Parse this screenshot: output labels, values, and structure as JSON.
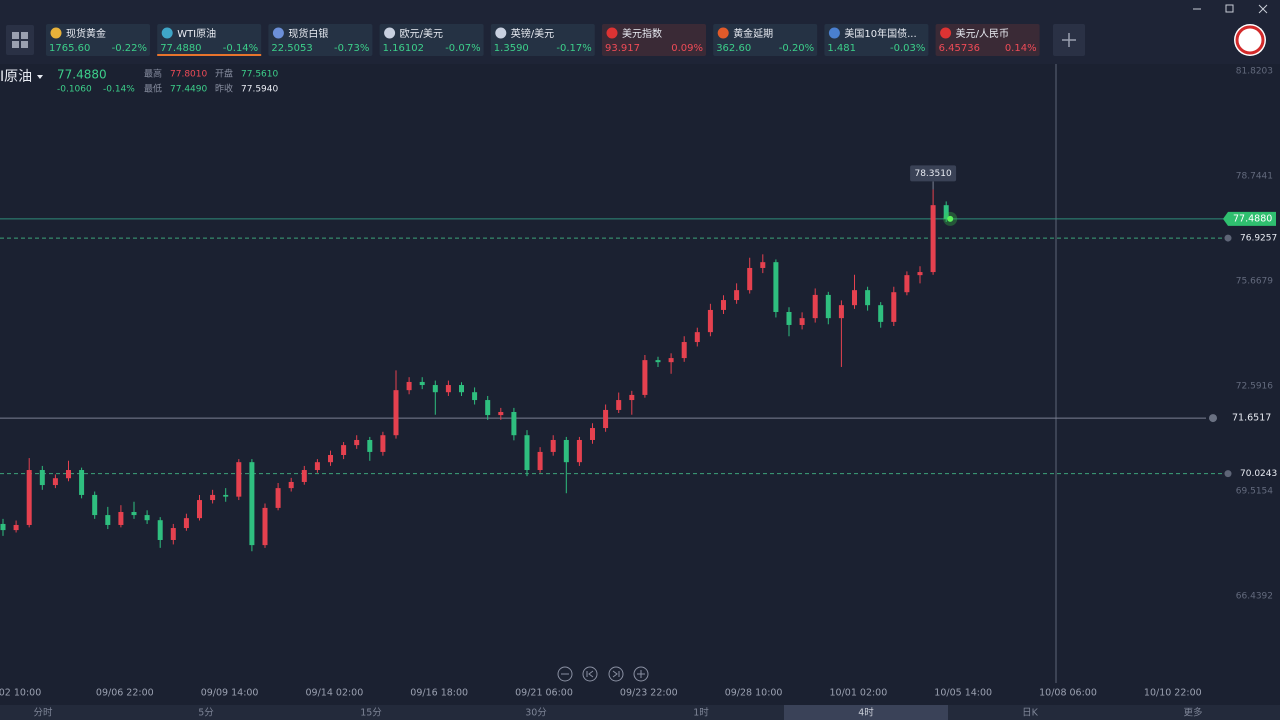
{
  "tickers": [
    {
      "name": "现货黄金",
      "price": "1765.60",
      "change": "-0.22%"
    },
    {
      "name": "WTI原油",
      "price": "77.4880",
      "change": "-0.14%"
    },
    {
      "name": "现货白银",
      "price": "22.5053",
      "change": "-0.73%"
    },
    {
      "name": "欧元/美元",
      "price": "1.16102",
      "change": "-0.07%"
    },
    {
      "name": "英镑/美元",
      "price": "1.3590",
      "change": "-0.17%"
    },
    {
      "name": "美元指数",
      "price": "93.917",
      "change": "0.09%"
    },
    {
      "name": "黄金延期",
      "price": "362.60",
      "change": "-0.20%"
    },
    {
      "name": "美国10年国债...",
      "price": "1.481",
      "change": "-0.03%"
    },
    {
      "name": "美元/人民币",
      "price": "6.45736",
      "change": "0.14%"
    }
  ],
  "quote": {
    "symbol": "I原油",
    "price": "77.4880",
    "change": "-0.1060",
    "change_pct": "-0.14%",
    "fields": [
      {
        "label": "最高",
        "value": "77.8010"
      },
      {
        "label": "开盘",
        "value": "77.5610"
      },
      {
        "label": "最低",
        "value": "77.4490"
      },
      {
        "label": "昨收",
        "value": "77.5940"
      }
    ]
  },
  "chart_data": {
    "type": "candlestick",
    "up_color": "#e5414f",
    "down_color": "#2fbf7f",
    "ylim": [
      63.89,
      82.026
    ],
    "yticks": [
      81.8203,
      78.7441,
      75.6679,
      72.5916,
      69.5154,
      66.4392
    ],
    "x_labels": [
      "02 10:00",
      "09/06 22:00",
      "09/09 14:00",
      "09/14 02:00",
      "09/16 18:00",
      "09/21 06:00",
      "09/23 22:00",
      "09/28 10:00",
      "10/01 02:00",
      "10/05 14:00",
      "10/08 06:00",
      "10/10 22:00"
    ],
    "last_price": {
      "value": 77.488,
      "label": "77.4880"
    },
    "high_label": {
      "value": 78.351,
      "label": "78.3510"
    },
    "alert_lines": [
      76.9257,
      70.0243
    ],
    "crosshair": 71.6517,
    "candles": [
      [
        68.55,
        68.7,
        68.2,
        68.37
      ],
      [
        68.37,
        68.65,
        68.3,
        68.52
      ],
      [
        68.52,
        70.48,
        68.45,
        70.13
      ],
      [
        70.13,
        70.25,
        69.55,
        69.69
      ],
      [
        69.69,
        70.0,
        69.6,
        69.89
      ],
      [
        69.89,
        70.4,
        69.8,
        70.13
      ],
      [
        70.13,
        70.2,
        69.3,
        69.4
      ],
      [
        69.4,
        69.5,
        68.7,
        68.81
      ],
      [
        68.81,
        69.05,
        68.4,
        68.52
      ],
      [
        68.52,
        69.1,
        68.45,
        68.9
      ],
      [
        68.9,
        69.2,
        68.7,
        68.81
      ],
      [
        68.81,
        68.95,
        68.55,
        68.66
      ],
      [
        68.66,
        68.75,
        67.85,
        68.08
      ],
      [
        68.08,
        68.55,
        67.95,
        68.43
      ],
      [
        68.43,
        68.85,
        68.35,
        68.72
      ],
      [
        68.72,
        69.4,
        68.65,
        69.25
      ],
      [
        69.25,
        69.55,
        69.15,
        69.4
      ],
      [
        69.4,
        69.6,
        69.2,
        69.35
      ],
      [
        69.35,
        70.45,
        69.25,
        70.36
      ],
      [
        70.36,
        70.45,
        67.75,
        67.93
      ],
      [
        67.93,
        69.15,
        67.85,
        69.02
      ],
      [
        69.02,
        69.75,
        68.95,
        69.6
      ],
      [
        69.6,
        69.9,
        69.5,
        69.78
      ],
      [
        69.78,
        70.25,
        69.7,
        70.13
      ],
      [
        70.13,
        70.45,
        70.05,
        70.36
      ],
      [
        70.36,
        70.7,
        70.25,
        70.57
      ],
      [
        70.57,
        70.95,
        70.45,
        70.86
      ],
      [
        70.86,
        71.15,
        70.75,
        71.01
      ],
      [
        71.01,
        71.1,
        70.4,
        70.66
      ],
      [
        70.66,
        71.25,
        70.55,
        71.15
      ],
      [
        71.15,
        73.05,
        71.05,
        72.47
      ],
      [
        72.47,
        72.85,
        72.35,
        72.71
      ],
      [
        72.71,
        72.85,
        72.5,
        72.62
      ],
      [
        72.62,
        72.75,
        71.75,
        72.41
      ],
      [
        72.41,
        72.75,
        72.3,
        72.62
      ],
      [
        72.62,
        72.7,
        72.3,
        72.41
      ],
      [
        72.41,
        72.55,
        72.05,
        72.18
      ],
      [
        72.18,
        72.3,
        71.6,
        71.74
      ],
      [
        71.74,
        71.95,
        71.6,
        71.83
      ],
      [
        71.83,
        71.95,
        71.0,
        71.15
      ],
      [
        71.15,
        71.3,
        69.95,
        70.13
      ],
      [
        70.13,
        70.8,
        70.05,
        70.66
      ],
      [
        70.66,
        71.15,
        70.55,
        71.01
      ],
      [
        71.01,
        71.1,
        69.45,
        70.36
      ],
      [
        70.36,
        71.1,
        70.25,
        71.01
      ],
      [
        71.01,
        71.5,
        70.9,
        71.36
      ],
      [
        71.36,
        72.05,
        71.25,
        71.89
      ],
      [
        71.89,
        72.4,
        71.8,
        72.18
      ],
      [
        72.18,
        72.45,
        71.75,
        72.33
      ],
      [
        72.33,
        73.5,
        72.25,
        73.35
      ],
      [
        73.35,
        73.45,
        73.15,
        73.29
      ],
      [
        73.29,
        73.55,
        72.95,
        73.41
      ],
      [
        73.41,
        74.05,
        73.3,
        73.88
      ],
      [
        73.88,
        74.3,
        73.75,
        74.17
      ],
      [
        74.17,
        75.0,
        74.05,
        74.82
      ],
      [
        74.82,
        75.25,
        74.7,
        75.11
      ],
      [
        75.11,
        75.6,
        75.0,
        75.4
      ],
      [
        75.4,
        76.35,
        75.3,
        76.05
      ],
      [
        76.05,
        76.45,
        75.9,
        76.22
      ],
      [
        76.22,
        76.3,
        74.6,
        74.76
      ],
      [
        74.76,
        74.9,
        74.05,
        74.38
      ],
      [
        74.38,
        74.75,
        74.25,
        74.58
      ],
      [
        74.58,
        75.45,
        74.45,
        75.26
      ],
      [
        75.26,
        75.35,
        74.4,
        74.58
      ],
      [
        74.58,
        75.1,
        73.15,
        74.96
      ],
      [
        74.96,
        75.85,
        74.85,
        75.4
      ],
      [
        75.4,
        75.5,
        74.8,
        74.96
      ],
      [
        74.96,
        75.05,
        74.3,
        74.47
      ],
      [
        74.47,
        75.5,
        74.35,
        75.34
      ],
      [
        75.34,
        75.95,
        75.25,
        75.84
      ],
      [
        75.84,
        76.1,
        75.6,
        75.93
      ],
      [
        75.93,
        78.351,
        75.85,
        77.89
      ],
      [
        77.89,
        78.0,
        77.4,
        77.488
      ]
    ]
  },
  "periods": [
    "分时",
    "5分",
    "15分",
    "30分",
    "1时",
    "4时",
    "日K",
    "更多"
  ],
  "selected_period": 5
}
